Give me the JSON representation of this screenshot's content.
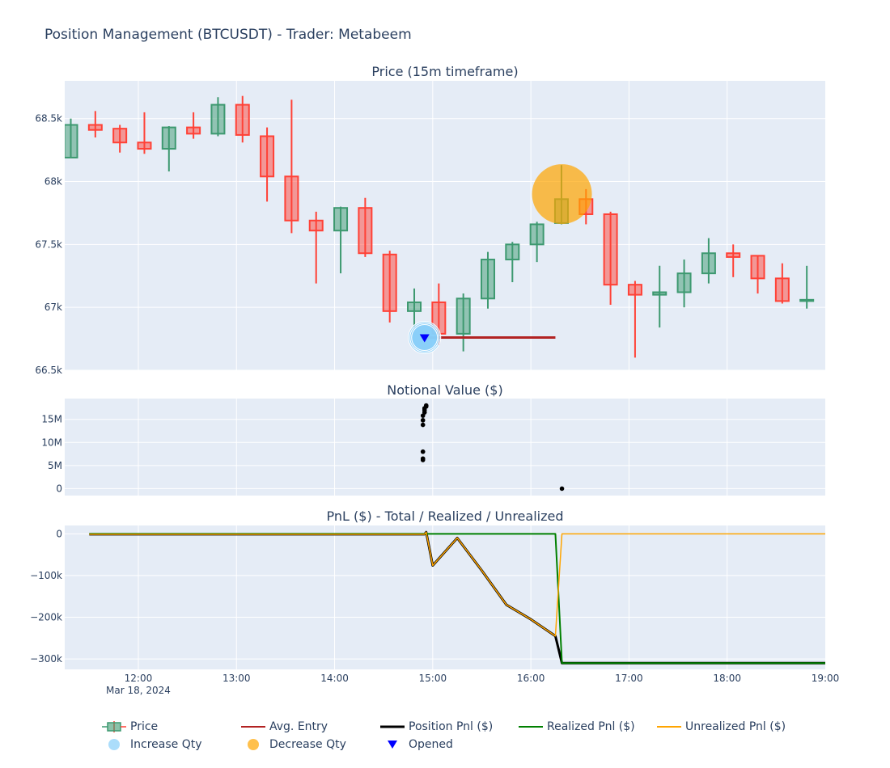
{
  "page": {
    "title": "Position Management (BTCUSDT) - Trader: Metabeem"
  },
  "colors": {
    "plot_bg": "#e5ecf6",
    "grid": "#ffffff",
    "increasing": "#3d9970",
    "decreasing": "#ff4136",
    "avg_entry": "#b22222",
    "position_pnl": "#000000",
    "realized_pnl": "#008000",
    "unrealized_pnl": "#ffa500",
    "increase_qty": "#87cefa",
    "decrease_qty": "#ffa500",
    "opened": "#0000ff"
  },
  "legend": {
    "items": [
      {
        "key": "price",
        "label": "Price",
        "icon": "candlestick-icon"
      },
      {
        "key": "avg_entry",
        "label": "Avg. Entry",
        "icon": "line-icon"
      },
      {
        "key": "position_pnl",
        "label": "Position Pnl ($)",
        "icon": "line-icon"
      },
      {
        "key": "realized_pnl",
        "label": "Realized Pnl ($)",
        "icon": "line-icon"
      },
      {
        "key": "unrealized_pnl",
        "label": "Unrealized Pnl ($)",
        "icon": "line-icon"
      },
      {
        "key": "increase_qty",
        "label": "Increase Qty",
        "icon": "circle-icon"
      },
      {
        "key": "decrease_qty",
        "label": "Decrease Qty",
        "icon": "circle-icon"
      },
      {
        "key": "opened",
        "label": "Opened",
        "icon": "triangle-down-icon"
      }
    ]
  },
  "chart_data": [
    {
      "type": "candlestick",
      "title": "Price (15m timeframe)",
      "x_unit": "time (Mar 18, 2024)",
      "xlim": [
        "11:15",
        "19:00"
      ],
      "ylim": [
        66500,
        68800
      ],
      "yticks": [
        66500,
        67000,
        67500,
        68000,
        68500
      ],
      "ytick_labels": [
        "66.5k",
        "67k",
        "67.5k",
        "68k",
        "68.5k"
      ],
      "candles": [
        {
          "t": "11:15",
          "o": 68190,
          "h": 68500,
          "l": 68190,
          "c": 68450
        },
        {
          "t": "11:30",
          "o": 68450,
          "h": 68560,
          "l": 68350,
          "c": 68410
        },
        {
          "t": "11:45",
          "o": 68420,
          "h": 68450,
          "l": 68230,
          "c": 68310
        },
        {
          "t": "12:00",
          "o": 68310,
          "h": 68550,
          "l": 68220,
          "c": 68260
        },
        {
          "t": "12:15",
          "o": 68260,
          "h": 68440,
          "l": 68080,
          "c": 68430
        },
        {
          "t": "12:30",
          "o": 68430,
          "h": 68550,
          "l": 68340,
          "c": 68380
        },
        {
          "t": "12:45",
          "o": 68380,
          "h": 68670,
          "l": 68360,
          "c": 68610
        },
        {
          "t": "13:00",
          "o": 68610,
          "h": 68680,
          "l": 68310,
          "c": 68370
        },
        {
          "t": "13:15",
          "o": 68360,
          "h": 68430,
          "l": 67840,
          "c": 68040
        },
        {
          "t": "13:30",
          "o": 68040,
          "h": 68650,
          "l": 67590,
          "c": 67690
        },
        {
          "t": "13:45",
          "o": 67690,
          "h": 67760,
          "l": 67190,
          "c": 67610
        },
        {
          "t": "14:00",
          "o": 67610,
          "h": 67800,
          "l": 67270,
          "c": 67790
        },
        {
          "t": "14:15",
          "o": 67790,
          "h": 67870,
          "l": 67400,
          "c": 67430
        },
        {
          "t": "14:30",
          "o": 67420,
          "h": 67450,
          "l": 66880,
          "c": 66970
        },
        {
          "t": "14:45",
          "o": 66970,
          "h": 67150,
          "l": 66840,
          "c": 67040
        },
        {
          "t": "15:00",
          "o": 67040,
          "h": 67190,
          "l": 66700,
          "c": 66790
        },
        {
          "t": "15:15",
          "o": 66790,
          "h": 67110,
          "l": 66650,
          "c": 67070
        },
        {
          "t": "15:30",
          "o": 67070,
          "h": 67440,
          "l": 66990,
          "c": 67380
        },
        {
          "t": "15:45",
          "o": 67380,
          "h": 67520,
          "l": 67200,
          "c": 67500
        },
        {
          "t": "16:00",
          "o": 67500,
          "h": 67680,
          "l": 67360,
          "c": 67660
        },
        {
          "t": "16:15",
          "o": 67670,
          "h": 68130,
          "l": 67660,
          "c": 67860
        },
        {
          "t": "16:30",
          "o": 67860,
          "h": 67940,
          "l": 67660,
          "c": 67740
        },
        {
          "t": "16:45",
          "o": 67740,
          "h": 67760,
          "l": 67020,
          "c": 67180
        },
        {
          "t": "17:00",
          "o": 67180,
          "h": 67210,
          "l": 66600,
          "c": 67100
        },
        {
          "t": "17:15",
          "o": 67100,
          "h": 67330,
          "l": 66840,
          "c": 67120
        },
        {
          "t": "17:30",
          "o": 67120,
          "h": 67380,
          "l": 67000,
          "c": 67270
        },
        {
          "t": "17:45",
          "o": 67270,
          "h": 67550,
          "l": 67190,
          "c": 67430
        },
        {
          "t": "18:00",
          "o": 67430,
          "h": 67500,
          "l": 67240,
          "c": 67400
        },
        {
          "t": "18:15",
          "o": 67410,
          "h": 67410,
          "l": 67110,
          "c": 67230
        },
        {
          "t": "18:30",
          "o": 67230,
          "h": 67350,
          "l": 67030,
          "c": 67050
        },
        {
          "t": "18:45",
          "o": 67050,
          "h": 67330,
          "l": 66990,
          "c": 67060
        }
      ],
      "avg_entry": {
        "x": [
          "14:57",
          "16:15"
        ],
        "y": 66760
      },
      "increase_qty": [
        {
          "t": "14:55",
          "y": 66760,
          "size": "large"
        }
      ],
      "decrease_qty": [
        {
          "t": "16:19",
          "y": 67900,
          "size": "large"
        }
      ],
      "opened": [
        {
          "t": "14:55",
          "y": 66760
        }
      ]
    },
    {
      "type": "scatter",
      "title": "Notional Value ($)",
      "ylim": [
        -1500000,
        19500000
      ],
      "yticks": [
        0,
        5000000,
        10000000,
        15000000
      ],
      "ytick_labels": [
        "0",
        "5M",
        "10M",
        "15M"
      ],
      "points": [
        {
          "t": "14:54",
          "y": 6200000
        },
        {
          "t": "14:54",
          "y": 6500000
        },
        {
          "t": "14:54",
          "y": 8000000
        },
        {
          "t": "14:54",
          "y": 13800000
        },
        {
          "t": "14:54",
          "y": 14800000
        },
        {
          "t": "14:54",
          "y": 15800000
        },
        {
          "t": "14:55",
          "y": 16500000
        },
        {
          "t": "14:55",
          "y": 17000000
        },
        {
          "t": "14:55",
          "y": 17400000
        },
        {
          "t": "14:56",
          "y": 17800000
        },
        {
          "t": "14:56",
          "y": 18000000
        },
        {
          "t": "16:19",
          "y": 0
        }
      ]
    },
    {
      "type": "line",
      "title": "PnL ($) - Total / Realized / Unrealized",
      "ylim": [
        -325000,
        20000
      ],
      "yticks": [
        0,
        -100000,
        -200000,
        -300000
      ],
      "ytick_labels": [
        "0",
        "−100k",
        "−200k",
        "−300k"
      ],
      "xticks": [
        "12:00",
        "13:00",
        "14:00",
        "15:00",
        "16:00",
        "17:00",
        "18:00",
        "19:00"
      ],
      "xtick_labels": [
        "12:00",
        "13:00",
        "14:00",
        "15:00",
        "16:00",
        "17:00",
        "18:00",
        "19:00"
      ],
      "x_date_label": "Mar 18, 2024",
      "series": [
        {
          "key": "realized",
          "name": "Realized Pnl ($)",
          "x": [
            "11:30",
            "16:15",
            "16:19",
            "19:00"
          ],
          "y": [
            0,
            0,
            -310000,
            -310000
          ]
        },
        {
          "key": "unrealized",
          "name": "Unrealized Pnl ($)",
          "x": [
            "11:30",
            "14:55",
            "14:56",
            "15:00",
            "15:15",
            "15:30",
            "15:45",
            "16:00",
            "16:15",
            "16:19",
            "19:00"
          ],
          "y": [
            -1000,
            -1000,
            4000,
            -76000,
            -10000,
            -88000,
            -170000,
            -205000,
            -245000,
            0,
            0
          ]
        },
        {
          "key": "position",
          "name": "Position Pnl ($)",
          "x": [
            "11:30",
            "14:55",
            "14:56",
            "15:00",
            "15:15",
            "15:30",
            "15:45",
            "16:00",
            "16:15",
            "16:19",
            "19:00"
          ],
          "y": [
            -1000,
            -1000,
            4000,
            -76000,
            -10000,
            -88000,
            -170000,
            -205000,
            -245000,
            -310000,
            -310000
          ]
        }
      ]
    }
  ]
}
